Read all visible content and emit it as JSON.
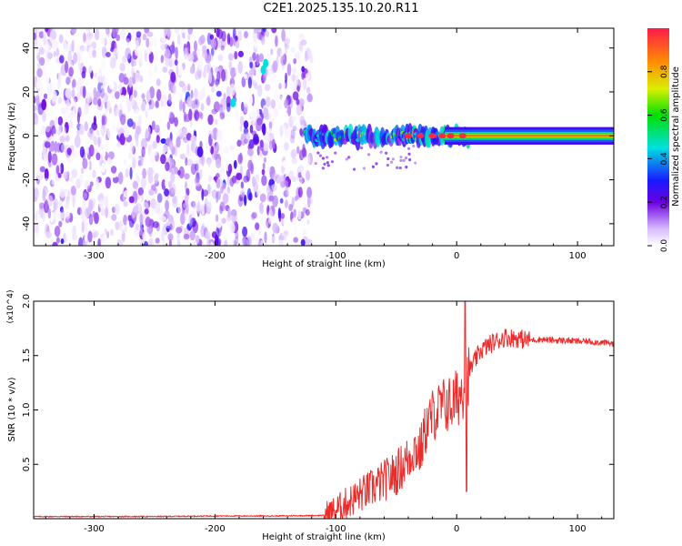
{
  "title": "C2E1.2025.135.10.20.R11",
  "colors": {
    "snr_line": "#ee2b2b",
    "axis": "#000000"
  },
  "chart_data": [
    {
      "type": "heatmap",
      "name": "spectrogram",
      "xlabel": "Height of straight line (km)",
      "ylabel": "Frequency (Hz)",
      "xlim": [
        -350,
        130
      ],
      "ylim": [
        -50,
        49
      ],
      "xticks": [
        -300,
        -200,
        -100,
        0,
        100
      ],
      "yticks": [
        -40,
        -20,
        0,
        20,
        40
      ],
      "colorbar": {
        "label": "Normalized spectral amplitude",
        "range": [
          0.0,
          1.0
        ],
        "ticks": [
          0.0,
          0.2,
          0.4,
          0.6,
          0.8
        ],
        "colormap": "white-purple-blue-cyan-green-yellow-orange-red"
      },
      "features": {
        "noise_region_x": [
          -350,
          -120
        ],
        "signal_band_center_hz": 0,
        "signal_band_halfwidth_hz": 4,
        "signal_onset_x": -125,
        "steady_from_x": 10
      }
    },
    {
      "type": "line",
      "name": "snr",
      "xlabel": "Height of straight line (km)",
      "ylabel": "SNR (10 * v/v)",
      "scale_note": "(x10^4)",
      "xlim": [
        -350,
        130
      ],
      "ylim": [
        0,
        2.0
      ],
      "xticks": [
        -300,
        -200,
        -100,
        0,
        100
      ],
      "yticks": [
        0.5,
        1.0,
        1.5,
        2.0
      ],
      "series": [
        {
          "x": [
            -350,
            -300,
            -250,
            -200,
            -150,
            -110,
            -100,
            -90,
            -80,
            -70,
            -60,
            -50,
            -40,
            -35,
            -30,
            -25,
            -20,
            -15,
            -10,
            -5,
            0,
            5,
            7,
            10,
            15,
            20,
            30,
            40,
            50,
            60,
            70,
            80,
            90,
            100,
            110,
            120,
            130
          ],
          "values": [
            0.02,
            0.02,
            0.02,
            0.025,
            0.025,
            0.03,
            0.08,
            0.15,
            0.22,
            0.28,
            0.35,
            0.42,
            0.55,
            0.65,
            0.62,
            0.85,
            0.95,
            1.0,
            1.05,
            1.05,
            1.1,
            1.2,
            1.25,
            1.35,
            1.45,
            1.55,
            1.62,
            1.67,
            1.66,
            1.64,
            1.65,
            1.64,
            1.64,
            1.63,
            1.63,
            1.62,
            1.61
          ]
        }
      ]
    }
  ]
}
